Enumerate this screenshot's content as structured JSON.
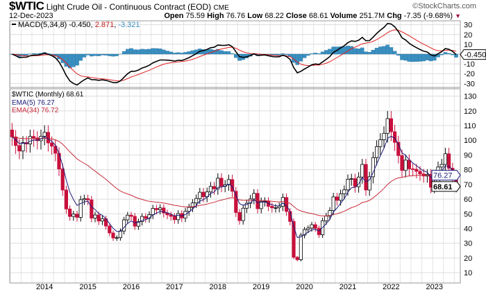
{
  "header": {
    "symbol": "$WTIC",
    "name": "Light Crude Oil - Continuous Contract (EOD)",
    "exchange": "CME",
    "brand": "©StockCharts.com",
    "date": "12-Dec-2023",
    "open_label": "Open",
    "open": "75.59",
    "high_label": "High",
    "high": "76.76",
    "low_label": "Low",
    "low": "68.22",
    "close_label": "Close",
    "close": "68.61",
    "volume_label": "Volume",
    "volume": "251.7M",
    "chg_label": "Chg",
    "chg": "-7.35 (-9.68%)"
  },
  "macd_legend": {
    "label": "MACD(5,34,8)",
    "macd": "-0.450",
    "signal": "2.871",
    "hist": "-3.321"
  },
  "price_legend": {
    "label": "$WTIC (Monthly) 68.61",
    "ema5": "EMA(5) 76.27",
    "ema34": "EMA(34) 76.72"
  },
  "price_tags": {
    "ema5": "76.27",
    "close": "68.61",
    "macd": "-0.450"
  },
  "colors": {
    "up": "#ffffff",
    "down": "#c8103c",
    "ema5": "#1a1a7a",
    "ema34": "#c82a3a",
    "hist": "#3a8fc0",
    "macd": "#000000",
    "signal": "#e02020"
  },
  "chart_data": {
    "type": "candlestick",
    "title": "$WTIC Light Crude Oil - Continuous Contract (EOD) Monthly",
    "start": "2013-09",
    "interval": "month",
    "close": [
      102.3,
      96.4,
      92.7,
      98.4,
      97.5,
      102.6,
      101.6,
      99.7,
      102.7,
      105.4,
      98.2,
      96.0,
      91.2,
      80.5,
      66.2,
      53.3,
      48.2,
      49.8,
      47.6,
      59.6,
      60.3,
      59.5,
      47.1,
      49.2,
      45.1,
      46.6,
      41.7,
      37.0,
      33.6,
      33.8,
      38.3,
      45.9,
      49.1,
      48.3,
      41.6,
      44.7,
      48.2,
      46.9,
      49.4,
      53.7,
      52.8,
      54.0,
      50.6,
      49.3,
      48.3,
      46.0,
      50.2,
      47.2,
      51.7,
      54.4,
      57.4,
      60.4,
      64.7,
      61.6,
      64.9,
      68.6,
      67.0,
      74.2,
      68.8,
      69.8,
      73.3,
      65.3,
      50.9,
      45.4,
      53.8,
      57.2,
      60.1,
      63.9,
      53.5,
      58.5,
      58.6,
      55.1,
      54.1,
      54.2,
      55.2,
      61.1,
      51.6,
      44.8,
      20.5,
      18.8,
      35.5,
      39.3,
      40.3,
      42.6,
      40.2,
      35.8,
      45.3,
      48.5,
      52.2,
      61.5,
      59.2,
      63.6,
      66.3,
      73.5,
      73.9,
      68.5,
      75.0,
      83.6,
      66.2,
      75.2,
      88.2,
      95.7,
      100.3,
      104.7,
      114.7,
      105.8,
      98.6,
      89.6,
      79.5,
      86.5,
      80.6,
      80.3,
      78.9,
      77.1,
      75.7,
      76.8,
      68.1,
      70.6,
      81.8,
      83.6,
      90.8,
      81.0,
      75.96,
      68.61
    ],
    "first_open": 107.0,
    "xticks": [
      "2014",
      "2015",
      "2016",
      "2017",
      "2018",
      "2019",
      "2020",
      "2021",
      "2022",
      "2023"
    ],
    "price_yticks": [
      10,
      20,
      30,
      40,
      50,
      60,
      70,
      80,
      90,
      100,
      110,
      120,
      130
    ],
    "price_ylim": [
      3,
      135
    ],
    "macd_yticks": [
      30,
      20,
      10,
      -10,
      -20,
      -30
    ],
    "macd_ylim": [
      -34,
      34
    ],
    "indicators": [
      "EMA(5)",
      "EMA(34)",
      "MACD(5,34,8)"
    ]
  }
}
